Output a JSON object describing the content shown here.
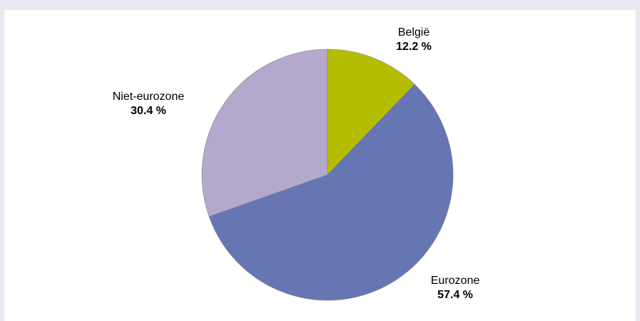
{
  "chart_data": {
    "type": "pie",
    "title": "",
    "start_angle_deg": 0,
    "direction": "clockwise",
    "slices": [
      {
        "label": "België",
        "value": 12.2,
        "value_text": "12.2 %",
        "color": "#b5bd00"
      },
      {
        "label": "Eurozone",
        "value": 57.4,
        "value_text": "57.4 %",
        "color": "#6676b3"
      },
      {
        "label": "Niet-eurozone",
        "value": 30.4,
        "value_text": "30.4 %",
        "color": "#b4a8cd"
      }
    ]
  }
}
